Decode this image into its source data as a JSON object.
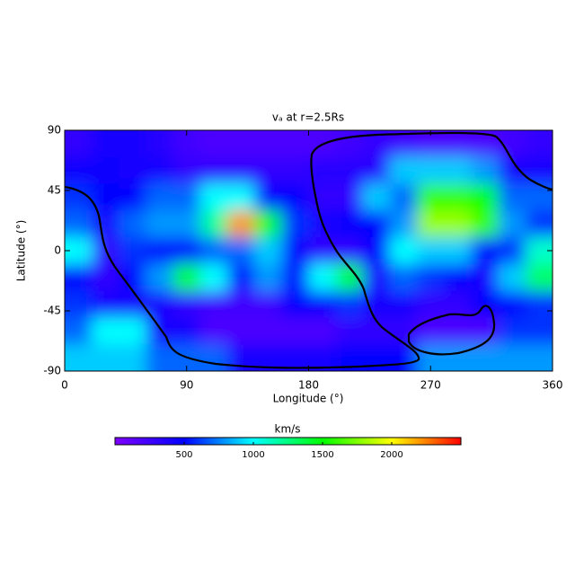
{
  "chart_data": {
    "type": "heatmap",
    "title": "vₐ at r=2.5Rs",
    "x_label": "Longitude (°)",
    "y_label": "Latitude (°)",
    "x": [
      10,
      30,
      50,
      70,
      90,
      110,
      130,
      150,
      170,
      190,
      210,
      230,
      250,
      270,
      290,
      310,
      330,
      350
    ],
    "y": [
      80,
      60,
      40,
      20,
      0,
      -20,
      -40,
      -60,
      -80
    ],
    "values": [
      [
        300,
        400,
        400,
        350,
        250,
        200,
        200,
        200,
        200,
        200,
        250,
        300,
        250,
        200,
        200,
        200,
        250,
        300
      ],
      [
        450,
        450,
        400,
        400,
        300,
        300,
        300,
        300,
        300,
        350,
        350,
        350,
        900,
        900,
        900,
        800,
        400,
        400
      ],
      [
        600,
        500,
        500,
        700,
        700,
        1000,
        1000,
        500,
        500,
        300,
        300,
        900,
        700,
        1600,
        1600,
        1500,
        700,
        700
      ],
      [
        700,
        400,
        700,
        800,
        800,
        1200,
        2200,
        1500,
        600,
        400,
        500,
        500,
        800,
        1800,
        1800,
        1600,
        800,
        600
      ],
      [
        1000,
        300,
        600,
        500,
        500,
        700,
        700,
        900,
        500,
        300,
        300,
        500,
        1000,
        900,
        900,
        500,
        600,
        1100
      ],
      [
        500,
        300,
        500,
        800,
        1400,
        1000,
        500,
        800,
        500,
        1000,
        1400,
        400,
        700,
        600,
        500,
        400,
        900,
        1300
      ],
      [
        600,
        400,
        400,
        400,
        300,
        250,
        250,
        250,
        500,
        500,
        600,
        400,
        400,
        300,
        300,
        500,
        500,
        600
      ],
      [
        700,
        1000,
        1000,
        400,
        400,
        200,
        200,
        200,
        200,
        200,
        300,
        300,
        300,
        200,
        200,
        200,
        600,
        600
      ],
      [
        900,
        900,
        900,
        700,
        700,
        700,
        400,
        400,
        400,
        400,
        500,
        500,
        500,
        800,
        800,
        800,
        800,
        800
      ]
    ],
    "xlim": [
      0,
      360
    ],
    "xticks": [
      0,
      90,
      180,
      270,
      360
    ],
    "ylim": [
      -90,
      90
    ],
    "yticks": [
      90,
      45,
      0,
      -45,
      -90
    ],
    "zlim": [
      0,
      2500
    ],
    "colorbar_ticks": [
      500,
      1000,
      1500,
      2000
    ],
    "colorbar_label": "km/s",
    "colormap": [
      "#7f00ff",
      "#0000ff",
      "#00ffff",
      "#00ff00",
      "#ffff00",
      "#ff0000"
    ]
  }
}
